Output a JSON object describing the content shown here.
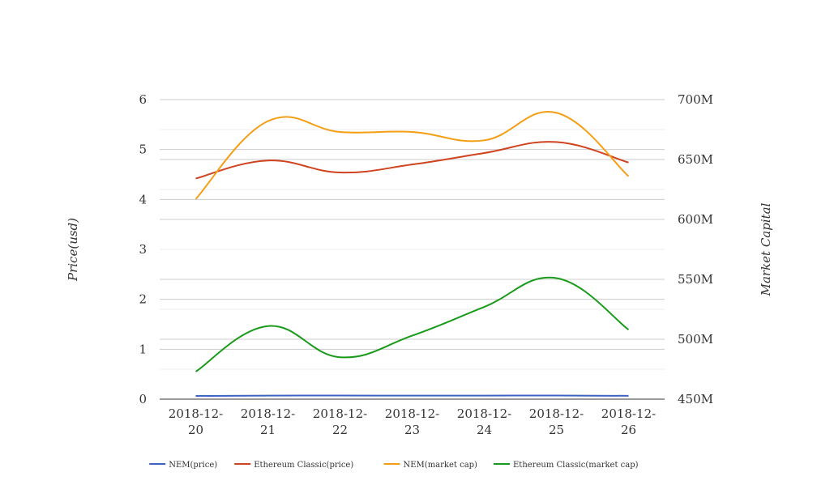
{
  "chart_data": {
    "type": "line",
    "title": "",
    "xlabel": "",
    "ylabel": "Price(usd)",
    "y2label": "Market Capital",
    "categories": [
      [
        "2018-12-",
        "20"
      ],
      [
        "2018-12-",
        "21"
      ],
      [
        "2018-12-",
        "22"
      ],
      [
        "2018-12-",
        "23"
      ],
      [
        "2018-12-",
        "24"
      ],
      [
        "2018-12-",
        "25"
      ],
      [
        "2018-12-",
        "26"
      ]
    ],
    "ylim": [
      0,
      6
    ],
    "y_ticks": [
      0,
      1,
      2,
      3,
      4,
      5,
      6
    ],
    "y_tick_labels": [
      "0",
      "1",
      "2",
      "3",
      "4",
      "5",
      "6"
    ],
    "y2lim": [
      450000000,
      700000000
    ],
    "y2_ticks": [
      450000000,
      500000000,
      550000000,
      600000000,
      650000000,
      700000000
    ],
    "y2_tick_labels": [
      "450M",
      "500M",
      "550M",
      "600M",
      "650M",
      "700M"
    ],
    "grid": true,
    "legend_position": "bottom",
    "series": [
      {
        "name": "NEM(price)",
        "axis": "left",
        "color": "#3b64c2",
        "values": [
          0.065,
          0.071,
          0.072,
          0.071,
          0.071,
          0.073,
          0.067
        ]
      },
      {
        "name": "Ethereum Classic(price)",
        "axis": "left",
        "color": "#d0431f",
        "values": [
          4.42,
          4.78,
          4.54,
          4.7,
          4.93,
          5.15,
          4.74
        ]
      },
      {
        "name": "NEM(market cap)",
        "axis": "right",
        "color": "#f49e14",
        "values": [
          617000000,
          682000000,
          673000000,
          673000000,
          666000000,
          689000000,
          636000000
        ]
      },
      {
        "name": "Ethereum Classic(market cap)",
        "axis": "right",
        "color": "#1a9a1a",
        "values": [
          473000000,
          511000000,
          485000000,
          503000000,
          527000000,
          551000000,
          508000000
        ]
      }
    ]
  }
}
